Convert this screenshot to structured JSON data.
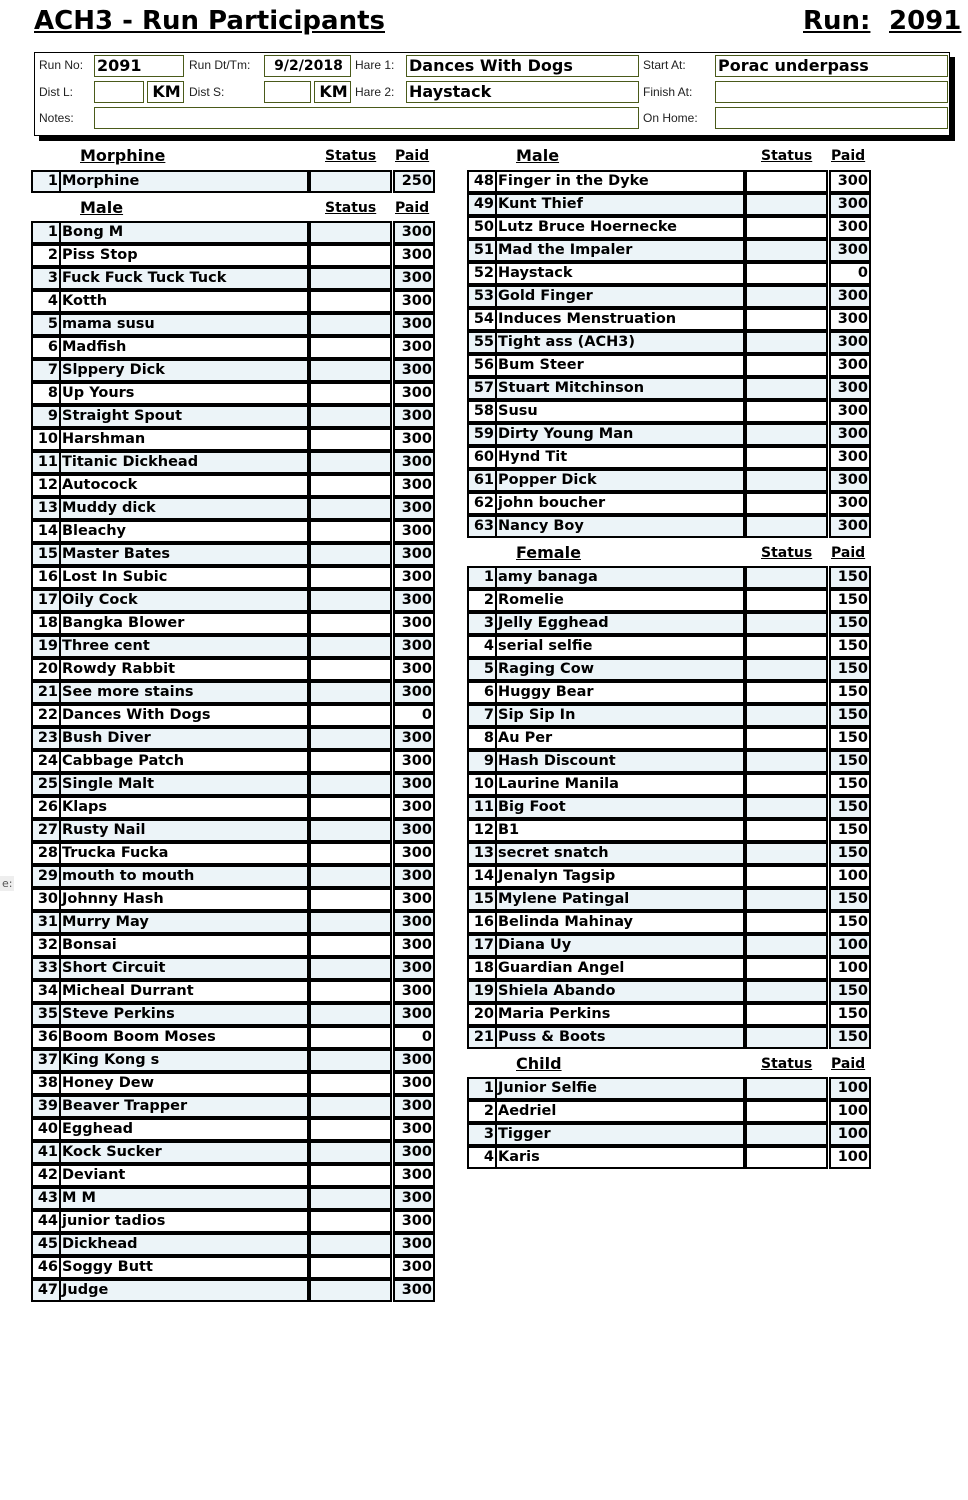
{
  "title": "ACH3 - Run Participants",
  "run_label": "Run:",
  "run_number": "2091",
  "form": {
    "run_no_label": "Run No:",
    "run_no": "2091",
    "run_dt_label": "Run Dt/Tm:",
    "run_dt": "9/2/2018",
    "hare1_label": "Hare 1:",
    "hare1": "Dances With Dogs",
    "start_label": "Start At:",
    "start": "Porac underpass",
    "dist_l_label": "Dist L:",
    "dist_l": "",
    "km1": "KM",
    "dist_s_label": "Dist S:",
    "dist_s": "",
    "km2": "KM",
    "hare2_label": "Hare 2:",
    "hare2": "Haystack",
    "finish_label": "Finish At:",
    "finish": "",
    "notes_label": "Notes:",
    "notes": "",
    "on_home_label": "On Home:",
    "on_home": ""
  },
  "stray_text": "e:",
  "sections": [
    {
      "title": "Morphine",
      "status": "Status",
      "paid": "Paid",
      "rows": [
        [
          1,
          "Morphine",
          "250"
        ]
      ]
    },
    {
      "title": "Male",
      "status": "Status",
      "paid": "Paid",
      "rows": [
        [
          1,
          "Bong M",
          "300"
        ],
        [
          2,
          "Piss Stop",
          "300"
        ],
        [
          3,
          "Fuck Fuck Tuck Tuck",
          "300"
        ],
        [
          4,
          "Kotth",
          "300"
        ],
        [
          5,
          "mama susu",
          "300"
        ],
        [
          6,
          "Madfish",
          "300"
        ],
        [
          7,
          "Slppery Dick",
          "300"
        ],
        [
          8,
          "Up Yours",
          "300"
        ],
        [
          9,
          "Straight Spout",
          "300"
        ],
        [
          10,
          "Harshman",
          "300"
        ],
        [
          11,
          "Titanic Dickhead",
          "300"
        ],
        [
          12,
          "Autocock",
          "300"
        ],
        [
          13,
          "Muddy dick",
          "300"
        ],
        [
          14,
          "Bleachy",
          "300"
        ],
        [
          15,
          "Master Bates",
          "300"
        ],
        [
          16,
          "Lost In Subic",
          "300"
        ],
        [
          17,
          "Oily Cock",
          "300"
        ],
        [
          18,
          "Bangka  Blower",
          "300"
        ],
        [
          19,
          "Three cent",
          "300"
        ],
        [
          20,
          "Rowdy Rabbit",
          "300"
        ],
        [
          21,
          "See more stains",
          "300"
        ],
        [
          22,
          "Dances With Dogs",
          "0"
        ],
        [
          23,
          "Bush Diver",
          "300"
        ],
        [
          24,
          "Cabbage Patch",
          "300"
        ],
        [
          25,
          "Single Malt",
          "300"
        ],
        [
          26,
          "Klaps",
          "300"
        ],
        [
          27,
          "Rusty Nail",
          "300"
        ],
        [
          28,
          "Trucka Fucka",
          "300"
        ],
        [
          29,
          "mouth to mouth",
          "300"
        ],
        [
          30,
          "Johnny Hash",
          "300"
        ],
        [
          31,
          "Murry May",
          "300"
        ],
        [
          32,
          "Bonsai",
          "300"
        ],
        [
          33,
          "Short Circuit",
          "300"
        ],
        [
          34,
          "Micheal Durrant",
          "300"
        ],
        [
          35,
          "Steve Perkins",
          "300"
        ],
        [
          36,
          "Boom Boom Moses",
          "0"
        ],
        [
          37,
          "King Kong s",
          "300"
        ],
        [
          38,
          "Honey Dew",
          "300"
        ],
        [
          39,
          "Beaver Trapper",
          "300"
        ],
        [
          40,
          "Egghead",
          "300"
        ],
        [
          41,
          "Kock Sucker",
          "300"
        ],
        [
          42,
          "Deviant",
          "300"
        ],
        [
          43,
          "M M",
          "300"
        ],
        [
          44,
          "junior tadios",
          "300"
        ],
        [
          45,
          "Dickhead",
          "300"
        ],
        [
          46,
          "Soggy Butt",
          "300"
        ],
        [
          47,
          "Judge",
          "300"
        ]
      ]
    },
    {
      "title": "Male",
      "status": "Status",
      "paid": "Paid",
      "rows": [
        [
          48,
          "Finger in the Dyke",
          "300"
        ],
        [
          49,
          "Kunt Thief",
          "300"
        ],
        [
          50,
          "Lutz Bruce Hoernecke",
          "300"
        ],
        [
          51,
          "Mad the Impaler",
          "300"
        ],
        [
          52,
          "Haystack",
          "0"
        ],
        [
          53,
          "Gold Finger",
          "300"
        ],
        [
          54,
          "Induces Menstruation",
          "300"
        ],
        [
          55,
          "Tight ass (ACH3)",
          "300"
        ],
        [
          56,
          "Bum Steer",
          "300"
        ],
        [
          57,
          "Stuart Mitchinson",
          "300"
        ],
        [
          58,
          "Susu",
          "300"
        ],
        [
          59,
          "Dirty Young Man",
          "300"
        ],
        [
          60,
          "Hynd Tit",
          "300"
        ],
        [
          61,
          "Popper Dick",
          "300"
        ],
        [
          62,
          "john boucher",
          "300"
        ],
        [
          63,
          "Nancy Boy",
          "300"
        ]
      ]
    },
    {
      "title": "Female",
      "status": "Status",
      "paid": "Paid",
      "rows": [
        [
          1,
          "amy banaga",
          "150"
        ],
        [
          2,
          "Romelie",
          "150"
        ],
        [
          3,
          "Jelly Egghead",
          "150"
        ],
        [
          4,
          "serial selfie",
          "150"
        ],
        [
          5,
          "Raging Cow",
          "150"
        ],
        [
          6,
          "Huggy Bear",
          "150"
        ],
        [
          7,
          "Sip Sip In",
          "150"
        ],
        [
          8,
          "Au Per",
          "150"
        ],
        [
          9,
          "Hash Discount",
          "150"
        ],
        [
          10,
          "Laurine Manila",
          "150"
        ],
        [
          11,
          "Big Foot",
          "150"
        ],
        [
          12,
          "B1",
          "150"
        ],
        [
          13,
          "secret snatch",
          "150"
        ],
        [
          14,
          "Jenalyn Tagsip",
          "100"
        ],
        [
          15,
          "Mylene Patingal",
          "150"
        ],
        [
          16,
          "Belinda Mahinay",
          "150"
        ],
        [
          17,
          "Diana Uy",
          "100"
        ],
        [
          18,
          "Guardian Angel",
          "100"
        ],
        [
          19,
          "Shiela Abando",
          "150"
        ],
        [
          20,
          "Maria Perkins",
          "150"
        ],
        [
          21,
          "Puss &  Boots",
          "150"
        ]
      ]
    },
    {
      "title": "Child",
      "status": "Status",
      "paid": "Paid",
      "rows": [
        [
          1,
          "Junior Selfie",
          "100"
        ],
        [
          2,
          "Aedriel",
          "100"
        ],
        [
          3,
          "Tigger",
          "100"
        ],
        [
          4,
          "Karis",
          "100"
        ]
      ]
    }
  ]
}
